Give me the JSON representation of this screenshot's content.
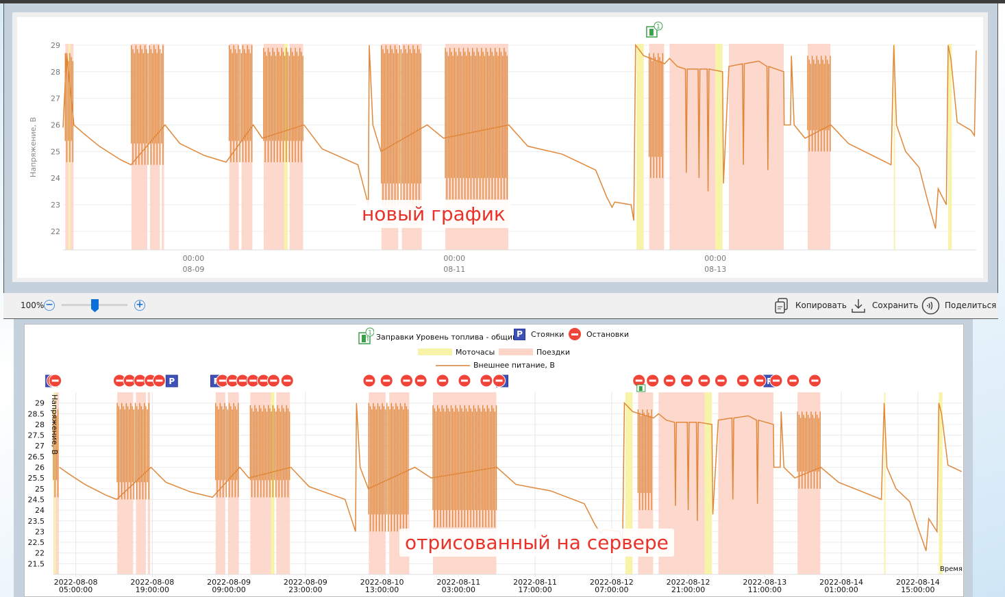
{
  "top_window": {
    "annotation": "новый график",
    "y_axis_label": "Напряжение, В",
    "x_ticks": [
      {
        "time": "2022-08-09 00:00",
        "line1": "00:00",
        "line2": "08-09"
      },
      {
        "time": "2022-08-11 00:00",
        "line1": "00:00",
        "line2": "08-11"
      },
      {
        "time": "2022-08-13 00:00",
        "line1": "00:00",
        "line2": "08-13"
      }
    ],
    "y_ticks": [
      "22",
      "23",
      "24",
      "25",
      "26",
      "27",
      "28",
      "29"
    ],
    "xlim": [
      "2022-08-08 00:00",
      "2022-08-15 00:00"
    ],
    "ylim": [
      21.3,
      29.05
    ],
    "fuel_badge": "1"
  },
  "toolbar": {
    "zoom_label": "100%",
    "zoom_slider_fraction": 0.5,
    "zoom_out_icon": "minus-circle-icon",
    "zoom_in_icon": "plus-circle-icon",
    "copy_label": "Копировать",
    "save_label": "Сохранить",
    "share_label": "Поделиться"
  },
  "bottom_window": {
    "annotation": "отрисованный на сервере",
    "y_axis_label": "Напряжение, В",
    "x_axis_label": "Время",
    "legend": {
      "fuel": "Заправки Уровень топлива - общий",
      "parking": "Стоянки",
      "stops": "Остановки",
      "motohours": "Моточасы",
      "trips": "Поездки",
      "voltage": "Внешнее питание, В"
    },
    "fuel_badge": "1",
    "parking_glyph": "P",
    "xlim": [
      "2022-08-08 00:55",
      "2022-08-14 23:10"
    ],
    "ylim": [
      21.0,
      29.5
    ],
    "y_ticks": [
      "21.5",
      "22",
      "22.5",
      "23",
      "23.5",
      "24",
      "24.5",
      "25",
      "25.5",
      "26",
      "26.5",
      "27",
      "27.5",
      "28",
      "28.5",
      "29"
    ],
    "x_ticks": [
      {
        "time": "2022-08-08 05:00",
        "line1": "2022-08-08",
        "line2": "05:00:00"
      },
      {
        "time": "2022-08-08 19:00",
        "line1": "2022-08-08",
        "line2": "19:00:00"
      },
      {
        "time": "2022-08-09 09:00",
        "line1": "2022-08-09",
        "line2": "09:00:00"
      },
      {
        "time": "2022-08-09 23:00",
        "line1": "2022-08-09",
        "line2": "23:00:00"
      },
      {
        "time": "2022-08-10 13:00",
        "line1": "2022-08-10",
        "line2": "13:00:00"
      },
      {
        "time": "2022-08-11 03:00",
        "line1": "2022-08-11",
        "line2": "03:00:00"
      },
      {
        "time": "2022-08-11 17:00",
        "line1": "2022-08-11",
        "line2": "17:00:00"
      },
      {
        "time": "2022-08-12 07:00",
        "line1": "2022-08-12",
        "line2": "07:00:00"
      },
      {
        "time": "2022-08-12 21:00",
        "line1": "2022-08-12",
        "line2": "21:00:00"
      },
      {
        "time": "2022-08-13 11:00",
        "line1": "2022-08-13",
        "line2": "11:00:00"
      },
      {
        "time": "2022-08-14 01:00",
        "line1": "2022-08-14",
        "line2": "01:00:00"
      },
      {
        "time": "2022-08-14 15:00",
        "line1": "2022-08-14",
        "line2": "15:00:00"
      }
    ]
  },
  "chart_data": {
    "type": "line",
    "ylabel": "Напряжение, В",
    "colors": {
      "voltage": "#e0873a",
      "trips": "#fdd5c8",
      "motohours": "#f7f3a8",
      "stops": "#f04438",
      "parking": "#3f51b5",
      "fuel": "#3aa04a"
    },
    "trips": [
      [
        "2022-08-08 00:25",
        "2022-08-08 01:55"
      ],
      [
        "2022-08-08 12:35",
        "2022-08-08 15:30"
      ],
      [
        "2022-08-08 16:00",
        "2022-08-08 17:50"
      ],
      [
        "2022-08-08 18:10",
        "2022-08-08 18:35"
      ],
      [
        "2022-08-09 06:35",
        "2022-08-09 08:20"
      ],
      [
        "2022-08-09 08:50",
        "2022-08-09 10:50"
      ],
      [
        "2022-08-09 12:55",
        "2022-08-09 17:10"
      ],
      [
        "2022-08-09 17:40",
        "2022-08-09 20:10"
      ],
      [
        "2022-08-10 10:35",
        "2022-08-10 13:40"
      ],
      [
        "2022-08-10 14:20",
        "2022-08-10 18:00"
      ],
      [
        "2022-08-10 22:20",
        "2022-08-11 09:55"
      ],
      [
        "2022-08-12 11:50",
        "2022-08-12 14:35"
      ],
      [
        "2022-08-12 15:35",
        "2022-08-13 00:00"
      ],
      [
        "2022-08-13 02:30",
        "2022-08-13 12:35"
      ],
      [
        "2022-08-13 17:00",
        "2022-08-13 21:10"
      ]
    ],
    "motohours": [
      [
        "2022-08-08 01:00",
        "2022-08-08 01:20"
      ],
      [
        "2022-08-09 16:40",
        "2022-08-09 17:20"
      ],
      [
        "2022-08-12 09:30",
        "2022-08-12 10:50"
      ],
      [
        "2022-08-13 00:00",
        "2022-08-13 01:20"
      ],
      [
        "2022-08-14 08:50",
        "2022-08-14 09:00"
      ],
      [
        "2022-08-14 18:50",
        "2022-08-14 19:30"
      ]
    ],
    "voltage_oscillations": [
      {
        "start": "2022-08-08 00:25",
        "end": "2022-08-08 01:55",
        "low": 24.6,
        "high": 28.7
      },
      {
        "start": "2022-08-08 12:35",
        "end": "2022-08-08 18:35",
        "low": 24.5,
        "high": 29.0
      },
      {
        "start": "2022-08-09 06:35",
        "end": "2022-08-09 10:50",
        "low": 24.6,
        "high": 29.0
      },
      {
        "start": "2022-08-09 12:55",
        "end": "2022-08-09 20:10",
        "low": 24.6,
        "high": 28.9
      },
      {
        "start": "2022-08-10 10:35",
        "end": "2022-08-10 18:00",
        "low": 23.0,
        "high": 29.0
      },
      {
        "start": "2022-08-10 22:20",
        "end": "2022-08-11 09:55",
        "low": 23.2,
        "high": 28.9
      },
      {
        "start": "2022-08-12 11:50",
        "end": "2022-08-12 14:35",
        "low": 24.0,
        "high": 28.7
      },
      {
        "start": "2022-08-13 17:00",
        "end": "2022-08-13 21:10",
        "low": 25.0,
        "high": 28.6
      }
    ],
    "voltage": [
      [
        "2022-08-08 00:00",
        25.9
      ],
      [
        "2022-08-08 00:40",
        28.7
      ],
      [
        "2022-08-08 02:00",
        26.0
      ],
      [
        "2022-08-08 03:40",
        25.7
      ],
      [
        "2022-08-08 06:40",
        25.2
      ],
      [
        "2022-08-08 10:30",
        24.7
      ],
      [
        "2022-08-08 12:30",
        24.5
      ],
      [
        "2022-08-08 18:45",
        26.0
      ],
      [
        "2022-08-08 21:30",
        25.3
      ],
      [
        "2022-08-09 02:00",
        24.85
      ],
      [
        "2022-08-09 06:00",
        24.6
      ],
      [
        "2022-08-09 11:00",
        26.0
      ],
      [
        "2022-08-09 12:40",
        25.5
      ],
      [
        "2022-08-09 20:20",
        26.0
      ],
      [
        "2022-08-09 23:40",
        25.1
      ],
      [
        "2022-08-10 06:15",
        24.5
      ],
      [
        "2022-08-10 08:10",
        23.0
      ],
      [
        "2022-08-10 08:20",
        29.0
      ],
      [
        "2022-08-10 09:00",
        26.0
      ],
      [
        "2022-08-10 10:30",
        25.0
      ],
      [
        "2022-08-10 19:00",
        26.0
      ],
      [
        "2022-08-10 22:00",
        25.5
      ],
      [
        "2022-08-11 10:00",
        26.0
      ],
      [
        "2022-08-11 13:30",
        25.2
      ],
      [
        "2022-08-11 19:50",
        24.9
      ],
      [
        "2022-08-12 02:00",
        24.3
      ],
      [
        "2022-08-12 04:00",
        23.3
      ],
      [
        "2022-08-12 05:00",
        22.9
      ],
      [
        "2022-08-12 05:30",
        23.1
      ],
      [
        "2022-08-12 08:30",
        23.0
      ],
      [
        "2022-08-12 09:00",
        22.4
      ],
      [
        "2022-08-12 09:20",
        29.0
      ],
      [
        "2022-08-12 10:50",
        28.6
      ],
      [
        "2022-08-12 14:40",
        28.3
      ],
      [
        "2022-08-12 15:35",
        28.5
      ],
      [
        "2022-08-12 17:00",
        28.2
      ],
      [
        "2022-08-12 18:30",
        28.1
      ],
      [
        "2022-08-12 18:40",
        24.2
      ],
      [
        "2022-08-12 18:50",
        28.1
      ],
      [
        "2022-08-12 20:50",
        28.1
      ],
      [
        "2022-08-12 21:00",
        24.0
      ],
      [
        "2022-08-12 21:10",
        28.1
      ],
      [
        "2022-08-12 22:30",
        28.1
      ],
      [
        "2022-08-12 22:40",
        23.5
      ],
      [
        "2022-08-12 22:50",
        28.1
      ],
      [
        "2022-08-13 01:20",
        28.0
      ],
      [
        "2022-08-13 01:30",
        23.8
      ],
      [
        "2022-08-13 02:30",
        28.2
      ],
      [
        "2022-08-13 05:00",
        28.3
      ],
      [
        "2022-08-13 05:10",
        24.5
      ],
      [
        "2022-08-13 05:20",
        28.3
      ],
      [
        "2022-08-13 08:00",
        28.4
      ],
      [
        "2022-08-13 09:30",
        28.2
      ],
      [
        "2022-08-13 09:40",
        24.3
      ],
      [
        "2022-08-13 09:50",
        28.2
      ],
      [
        "2022-08-13 12:35",
        28.0
      ],
      [
        "2022-08-13 12:40",
        26.0
      ],
      [
        "2022-08-13 13:50",
        26.0
      ],
      [
        "2022-08-13 14:00",
        28.6
      ],
      [
        "2022-08-13 14:30",
        26.0
      ],
      [
        "2022-08-13 16:30",
        25.5
      ],
      [
        "2022-08-13 21:15",
        26.0
      ],
      [
        "2022-08-14 00:30",
        25.3
      ],
      [
        "2022-08-14 08:20",
        24.5
      ],
      [
        "2022-08-14 08:50",
        29.0
      ],
      [
        "2022-08-14 09:20",
        26.0
      ],
      [
        "2022-08-14 11:00",
        25.0
      ],
      [
        "2022-08-14 13:30",
        24.4
      ],
      [
        "2022-08-14 15:00",
        23.2
      ],
      [
        "2022-08-14 16:30",
        22.1
      ],
      [
        "2022-08-14 17:00",
        23.6
      ],
      [
        "2022-08-14 18:30",
        23.0
      ],
      [
        "2022-08-14 18:50",
        29.0
      ],
      [
        "2022-08-14 19:20",
        28.5
      ],
      [
        "2022-08-14 20:30",
        26.1
      ],
      [
        "2022-08-14 23:00",
        25.8
      ],
      [
        "2022-08-14 23:40",
        25.6
      ],
      [
        "2022-08-15 00:00",
        28.8
      ]
    ],
    "stops": [
      "2022-08-08 00:50",
      "2022-08-08 01:15",
      "2022-08-08 13:00",
      "2022-08-08 14:50",
      "2022-08-08 16:45",
      "2022-08-08 18:40",
      "2022-08-08 20:15",
      "2022-08-09 07:50",
      "2022-08-09 09:40",
      "2022-08-09 11:30",
      "2022-08-09 13:25",
      "2022-08-09 15:20",
      "2022-08-09 17:10",
      "2022-08-09 19:40",
      "2022-08-10 10:40",
      "2022-08-10 13:50",
      "2022-08-10 17:30",
      "2022-08-10 20:05",
      "2022-08-11 00:05",
      "2022-08-11 04:05",
      "2022-08-11 08:05",
      "2022-08-11 10:25",
      "2022-08-12 12:00",
      "2022-08-12 14:30",
      "2022-08-12 17:35",
      "2022-08-12 20:45",
      "2022-08-12 23:55",
      "2022-08-13 03:00",
      "2022-08-13 07:00",
      "2022-08-13 10:05",
      "2022-08-13 13:05",
      "2022-08-13 16:10",
      "2022-08-13 20:10"
    ],
    "parking": [
      "2022-08-08 00:30",
      "2022-08-08 22:30",
      "2022-08-09 06:40",
      "2022-08-11 10:55",
      "2022-08-13 11:50"
    ],
    "fuelings": [
      "2022-08-12 12:30"
    ]
  }
}
